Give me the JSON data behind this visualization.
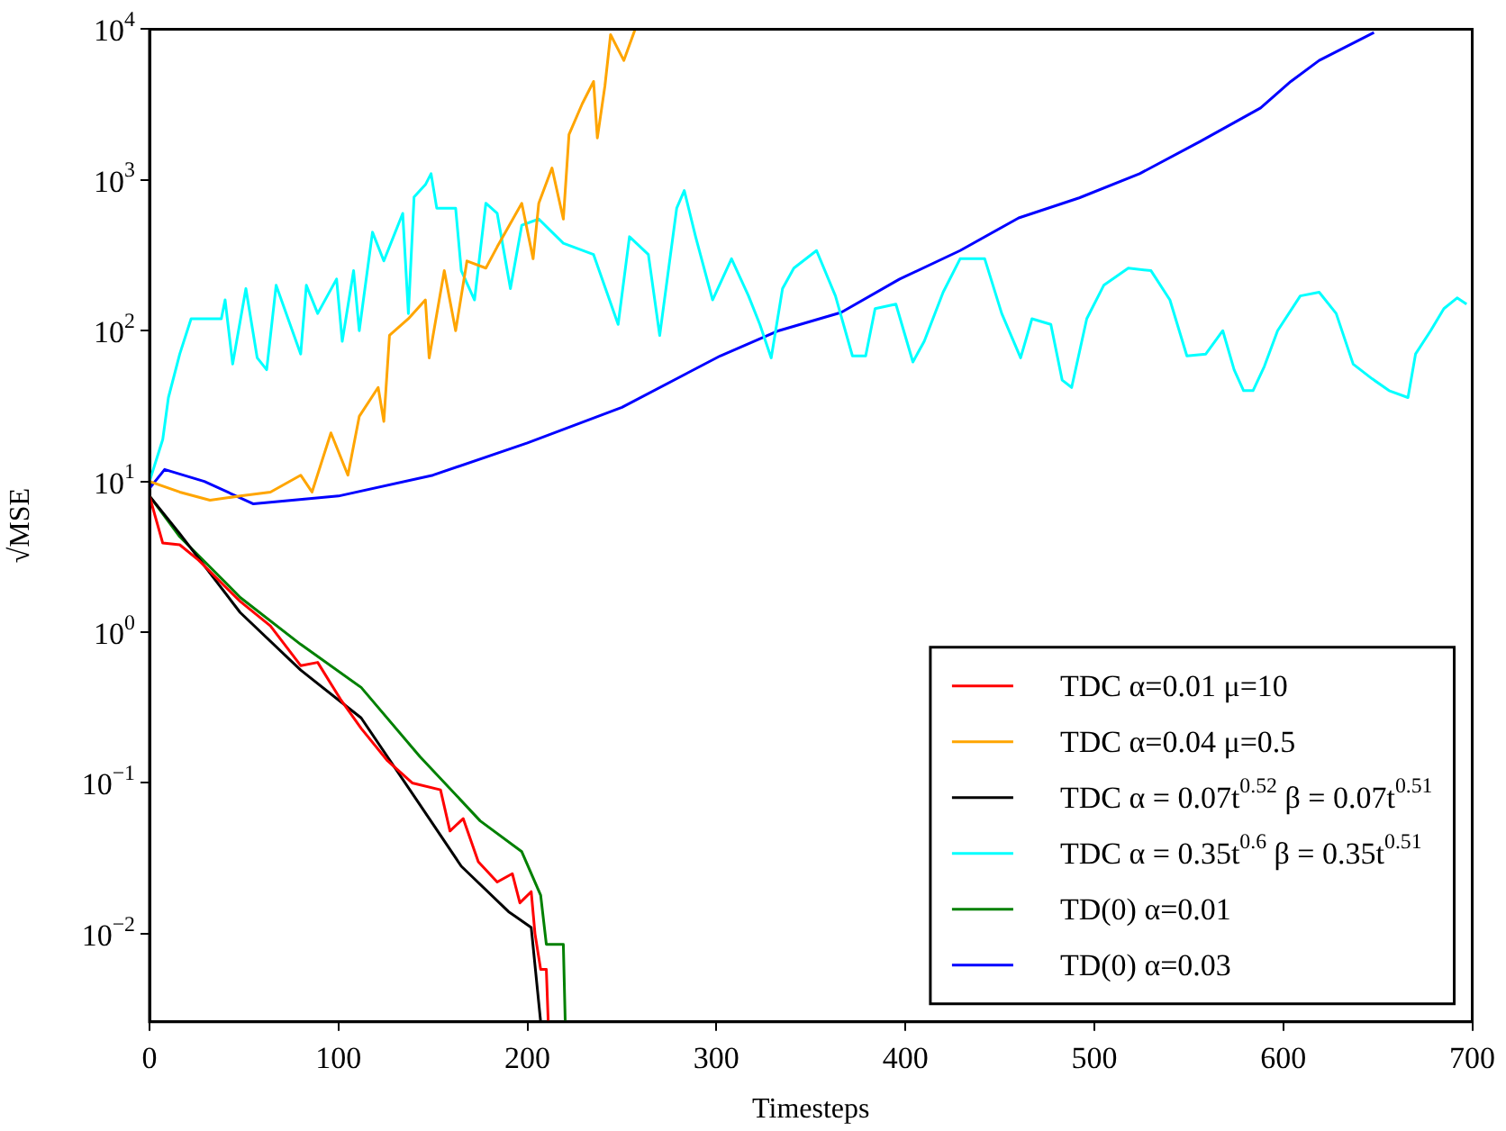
{
  "chart_data": {
    "type": "line",
    "xlabel": "Timesteps",
    "ylabel": "√MSE",
    "log": "y",
    "grid": false,
    "legend": "bottom right",
    "marker": "none",
    "line_style": "solid",
    "xlim": [
      0,
      700
    ],
    "xticks": [
      0,
      100,
      200,
      300,
      400,
      500,
      600,
      700
    ],
    "ylim": [
      0.0026,
      10000
    ],
    "yticks": [
      {
        "value": 0.01,
        "label": "10$^{−2}$"
      },
      {
        "value": 0.1,
        "label": "10$^{−1}$"
      },
      {
        "value": 1,
        "label": "10$^{0}$"
      },
      {
        "value": 10,
        "label": "10$^{1}$"
      },
      {
        "value": 100,
        "label": "10$^{2}$"
      },
      {
        "value": 1000,
        "label": "10$^{3}$"
      },
      {
        "value": 10000,
        "label": "10$^{4}$"
      }
    ],
    "series": [
      {
        "name": "TDC α=0.01 μ=10",
        "color": "#ff0000",
        "x": [
          0,
          7,
          16,
          26,
          48,
          64,
          80,
          89,
          101,
          112,
          126,
          139,
          154,
          159,
          166,
          174,
          184,
          192,
          196,
          202,
          204,
          207,
          210,
          211
        ],
        "values": [
          8,
          3.9,
          3.8,
          3,
          1.6,
          1.1,
          0.6,
          0.63,
          0.36,
          0.23,
          0.14,
          0.1,
          0.09,
          0.048,
          0.058,
          0.03,
          0.022,
          0.025,
          0.016,
          0.019,
          0.01,
          0.0058,
          0.0058,
          0.0026
        ]
      },
      {
        "name": "TDC α=0.04 μ=0.5",
        "color": "#ffa500",
        "x": [
          0,
          16,
          32,
          48,
          64,
          80,
          86,
          96,
          105,
          111,
          121,
          124,
          127,
          137,
          146,
          148,
          156,
          162,
          168,
          178,
          184,
          197,
          203,
          206,
          213,
          219,
          222,
          229,
          235,
          237,
          241,
          244,
          251,
          257
        ],
        "values": [
          10,
          8.5,
          7.5,
          8,
          8.5,
          11,
          8.5,
          21,
          11,
          27,
          42,
          25,
          93,
          120,
          160,
          66,
          250,
          100,
          290,
          260,
          360,
          700,
          300,
          700,
          1200,
          550,
          2000,
          3200,
          4500,
          1900,
          4200,
          9200,
          6200,
          10000
        ]
      },
      {
        "name": "TDC α = 0.07t$^{0.52}$ β = 0.07t$^{0.51}$",
        "color": "#000000",
        "x": [
          0,
          16,
          48,
          80,
          112,
          143,
          165,
          190,
          202,
          207
        ],
        "values": [
          8,
          4.5,
          1.35,
          0.56,
          0.27,
          0.072,
          0.028,
          0.014,
          0.011,
          0.0026
        ]
      },
      {
        "name": "TDC α = 0.35t$^{0.6}$ β = 0.35t$^{0.51}$",
        "color": "#00ffff",
        "x": [
          0,
          7,
          10,
          16,
          22,
          38,
          40,
          44,
          51,
          57,
          62,
          67,
          80,
          83,
          89,
          99,
          102,
          108,
          111,
          118,
          124,
          134,
          137,
          140,
          146,
          149,
          152,
          162,
          165,
          172,
          178,
          184,
          191,
          197,
          206,
          219,
          235,
          248,
          254,
          264,
          270,
          279,
          283,
          289,
          298,
          308,
          317,
          323,
          329,
          335,
          341,
          353,
          363,
          372,
          379,
          384,
          395,
          404,
          410,
          420,
          429,
          442,
          451,
          461,
          467,
          477,
          483,
          488,
          496,
          505,
          518,
          530,
          540,
          549,
          559,
          568,
          574,
          579,
          584,
          590,
          597,
          609,
          619,
          628,
          637,
          647,
          656,
          666,
          670,
          678,
          685,
          692,
          697
        ],
        "values": [
          10,
          19,
          36,
          70,
          120,
          120,
          160,
          60,
          190,
          66,
          55,
          200,
          70,
          200,
          130,
          220,
          85,
          250,
          100,
          450,
          290,
          600,
          130,
          770,
          930,
          1100,
          650,
          650,
          250,
          160,
          700,
          600,
          190,
          500,
          550,
          380,
          320,
          110,
          420,
          320,
          93,
          650,
          850,
          420,
          160,
          300,
          170,
          110,
          66,
          190,
          260,
          340,
          170,
          68,
          68,
          140,
          150,
          62,
          85,
          180,
          300,
          300,
          130,
          66,
          120,
          110,
          47,
          42,
          120,
          200,
          260,
          250,
          160,
          68,
          70,
          100,
          55,
          40,
          40,
          58,
          100,
          170,
          180,
          130,
          60,
          48,
          40,
          36,
          70,
          100,
          140,
          165,
          150
        ]
      },
      {
        "name": "TD(0) α=0.01",
        "color": "#008000",
        "x": [
          0,
          16,
          48,
          80,
          112,
          143,
          175,
          197,
          207,
          210,
          219,
          220
        ],
        "values": [
          8,
          4.3,
          1.7,
          0.83,
          0.43,
          0.15,
          0.056,
          0.035,
          0.018,
          0.0085,
          0.0085,
          0.0026
        ]
      },
      {
        "name": "TD(0) α=0.03",
        "color": "#0000ff",
        "x": [
          0,
          8,
          29,
          55,
          100,
          150,
          200,
          250,
          302,
          333,
          366,
          397,
          429,
          460,
          492,
          524,
          556,
          588,
          604,
          619,
          648
        ],
        "values": [
          9,
          12,
          10,
          7.1,
          8,
          11,
          18,
          31,
          68,
          100,
          132,
          220,
          340,
          560,
          760,
          1100,
          1800,
          3000,
          4500,
          6200,
          9500
        ]
      }
    ]
  }
}
